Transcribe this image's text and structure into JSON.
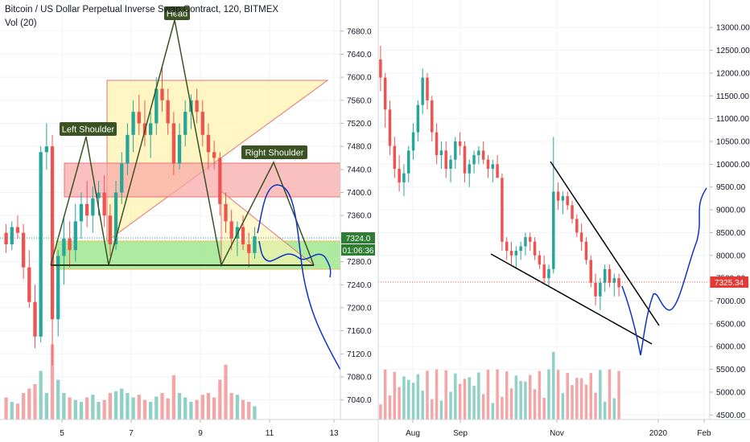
{
  "left": {
    "title": "Bitcoin / US Dollar Perpetual Inverse Swap Contract, 120, BITMEX",
    "vol_label": "Vol (20)",
    "price_badge": "7324.0",
    "timer_badge": "01:06:36",
    "annotations": {
      "left_shoulder": "Left Shoulder",
      "head": "Head",
      "right_shoulder": "Right Shoulder"
    }
  },
  "right": {
    "price_badge": "7325.34"
  },
  "colors": {
    "up": "#26a69a",
    "down": "#ef5350",
    "up_vol": "#8fd1c6",
    "down_vol": "#f4a6a6",
    "label_bg": "#3b5323",
    "drawing_blue": "#0d33c4",
    "badge_green": "#2e7d32",
    "badge_red": "#e53935"
  },
  "chart_data": [
    {
      "type": "candlestick",
      "title": "Bitcoin / US Dollar Perpetual Inverse Swap Contract, 120, BITMEX",
      "indicator": "Vol (20)",
      "x_tick_labels": [
        "5",
        "7",
        "9",
        "11",
        "13"
      ],
      "y_tick_labels": [
        "7040.0",
        "7080.0",
        "7120.0",
        "7160.0",
        "7200.0",
        "7240.0",
        "7280.0",
        "7320.0",
        "7360.0",
        "7400.0",
        "7440.0",
        "7480.0",
        "7520.0",
        "7560.0",
        "7600.0",
        "7640.0",
        "7680.0"
      ],
      "y_range": [
        7020,
        7695
      ],
      "last_price": 7324.0,
      "candles_ohlc": [
        [
          7330,
          7345,
          7295,
          7310
        ],
        [
          7310,
          7350,
          7300,
          7340
        ],
        [
          7340,
          7360,
          7320,
          7330
        ],
        [
          7330,
          7345,
          7250,
          7270
        ],
        [
          7270,
          7300,
          7200,
          7210
        ],
        [
          7210,
          7240,
          7130,
          7150
        ],
        [
          7150,
          7480,
          7140,
          7470
        ],
        [
          7470,
          7520,
          7440,
          7480
        ],
        [
          7480,
          7500,
          7100,
          7180
        ],
        [
          7180,
          7300,
          7150,
          7290
        ],
        [
          7290,
          7360,
          7240,
          7320
        ],
        [
          7320,
          7350,
          7270,
          7300
        ],
        [
          7300,
          7380,
          7280,
          7350
        ],
        [
          7350,
          7400,
          7320,
          7380
        ],
        [
          7380,
          7420,
          7340,
          7360
        ],
        [
          7360,
          7410,
          7330,
          7390
        ],
        [
          7390,
          7420,
          7360,
          7400
        ],
        [
          7400,
          7430,
          7340,
          7360
        ],
        [
          7360,
          7380,
          7290,
          7310
        ],
        [
          7310,
          7420,
          7300,
          7400
        ],
        [
          7400,
          7470,
          7380,
          7450
        ],
        [
          7450,
          7520,
          7430,
          7500
        ],
        [
          7500,
          7560,
          7470,
          7540
        ],
        [
          7540,
          7570,
          7500,
          7520
        ],
        [
          7520,
          7560,
          7480,
          7500
        ],
        [
          7500,
          7540,
          7460,
          7520
        ],
        [
          7520,
          7600,
          7500,
          7580
        ],
        [
          7580,
          7620,
          7540,
          7560
        ],
        [
          7560,
          7580,
          7500,
          7520
        ],
        [
          7520,
          7540,
          7430,
          7450
        ],
        [
          7450,
          7520,
          7440,
          7500
        ],
        [
          7500,
          7560,
          7480,
          7540
        ],
        [
          7540,
          7570,
          7510,
          7560
        ],
        [
          7560,
          7580,
          7520,
          7540
        ],
        [
          7540,
          7560,
          7480,
          7500
        ],
        [
          7500,
          7520,
          7440,
          7470
        ],
        [
          7470,
          7490,
          7440,
          7460
        ],
        [
          7460,
          7470,
          7360,
          7380
        ],
        [
          7380,
          7400,
          7330,
          7350
        ],
        [
          7350,
          7370,
          7300,
          7320
        ],
        [
          7320,
          7350,
          7290,
          7340
        ],
        [
          7340,
          7360,
          7300,
          7310
        ],
        [
          7310,
          7330,
          7270,
          7295
        ],
        [
          7295,
          7340,
          7285,
          7324
        ]
      ],
      "volume_peak_relative": [
        0.25,
        0.2,
        0.18,
        0.3,
        0.35,
        0.4,
        0.55,
        0.3,
        0.85,
        0.45,
        0.3,
        0.25,
        0.22,
        0.2,
        0.25,
        0.28,
        0.2,
        0.22,
        0.3,
        0.32,
        0.35,
        0.3,
        0.25,
        0.28,
        0.22,
        0.2,
        0.26,
        0.3,
        0.24,
        0.5,
        0.3,
        0.25,
        0.2,
        0.22,
        0.28,
        0.3,
        0.25,
        0.45,
        0.62,
        0.3,
        0.28,
        0.22,
        0.2,
        0.15
      ],
      "pattern": "head-and-shoulders",
      "pattern_labels": [
        "Left Shoulder",
        "Head",
        "Right Shoulder"
      ]
    },
    {
      "type": "candlestick",
      "x_tick_labels": [
        "Aug",
        "Sep",
        "Nov",
        "2020",
        "Feb"
      ],
      "y_tick_labels": [
        "4500.00",
        "5000.00",
        "5500.00",
        "6000.00",
        "6500.00",
        "7000.00",
        "7500.00",
        "8000.00",
        "8500.00",
        "9000.00",
        "9500.00",
        "10000.00",
        "10500.00",
        "11000.00",
        "11500.00",
        "12000.00",
        "12500.00",
        "13000.00"
      ],
      "y_range": [
        4400,
        13250
      ],
      "last_price": 7325.34,
      "candles_ohlc": [
        [
          12300,
          12600,
          11600,
          11900
        ],
        [
          11900,
          12000,
          10800,
          11200
        ],
        [
          11200,
          11400,
          10200,
          10400
        ],
        [
          10400,
          10600,
          9700,
          9900
        ],
        [
          9900,
          10200,
          9400,
          9600
        ],
        [
          9600,
          10000,
          9300,
          9800
        ],
        [
          9800,
          10400,
          9600,
          10300
        ],
        [
          10300,
          10900,
          10100,
          10700
        ],
        [
          10700,
          11400,
          10500,
          11300
        ],
        [
          11300,
          12100,
          11100,
          11900
        ],
        [
          11900,
          12000,
          11200,
          11400
        ],
        [
          11400,
          11500,
          10500,
          10700
        ],
        [
          10700,
          10900,
          10000,
          10200
        ],
        [
          10200,
          10500,
          9900,
          10300
        ],
        [
          10300,
          10500,
          9700,
          9900
        ],
        [
          9900,
          10200,
          9600,
          10100
        ],
        [
          10100,
          10600,
          9900,
          10500
        ],
        [
          10500,
          10700,
          10200,
          10400
        ],
        [
          10400,
          10500,
          9600,
          9800
        ],
        [
          9800,
          10100,
          9500,
          10000
        ],
        [
          10000,
          10300,
          9800,
          10200
        ],
        [
          10200,
          10400,
          10000,
          10300
        ],
        [
          10300,
          10500,
          10000,
          10100
        ],
        [
          10100,
          10200,
          9700,
          9900
        ],
        [
          9900,
          10100,
          9600,
          10000
        ],
        [
          10000,
          10200,
          9800,
          9700
        ],
        [
          9700,
          9800,
          8100,
          8300
        ],
        [
          8300,
          8400,
          7900,
          8100
        ],
        [
          8100,
          8300,
          7800,
          8000
        ],
        [
          8000,
          8200,
          7700,
          8100
        ],
        [
          8100,
          8300,
          7900,
          8200
        ],
        [
          8200,
          8500,
          8000,
          8400
        ],
        [
          8400,
          8500,
          8100,
          8300
        ],
        [
          8300,
          8400,
          7900,
          8000
        ],
        [
          8000,
          8100,
          7700,
          7800
        ],
        [
          7800,
          8000,
          7400,
          7500
        ],
        [
          7500,
          7800,
          7300,
          7700
        ],
        [
          7700,
          10600,
          7600,
          9400
        ],
        [
          9400,
          9600,
          9000,
          9200
        ],
        [
          9200,
          9400,
          8900,
          9300
        ],
        [
          9300,
          9400,
          9000,
          9100
        ],
        [
          9100,
          9200,
          8700,
          8800
        ],
        [
          8800,
          8900,
          8400,
          8500
        ],
        [
          8500,
          8700,
          8100,
          8300
        ],
        [
          8300,
          8400,
          7800,
          7900
        ],
        [
          7900,
          8000,
          7300,
          7400
        ],
        [
          7400,
          7600,
          6900,
          7100
        ],
        [
          7100,
          7500,
          6800,
          7400
        ],
        [
          7400,
          7800,
          7200,
          7700
        ],
        [
          7700,
          7800,
          7300,
          7400
        ],
        [
          7400,
          7600,
          7100,
          7500
        ],
        [
          7500,
          7600,
          7100,
          7300
        ]
      ],
      "pattern": "falling wedge"
    }
  ]
}
